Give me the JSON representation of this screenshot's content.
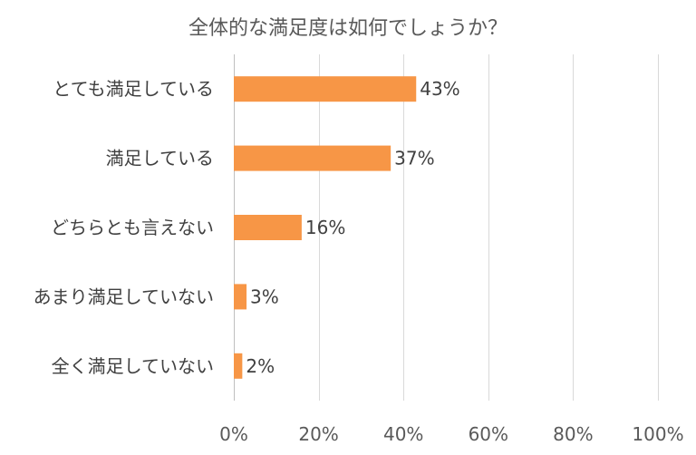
{
  "chart_data": {
    "type": "bar",
    "orientation": "horizontal",
    "title": "全体的な満足度は如何でしょうか？",
    "categories": [
      "とても満足している",
      "満足している",
      "どちらとも言えない",
      "あまり満足していない",
      "全く満足していない"
    ],
    "values": [
      43,
      37,
      16,
      3,
      2
    ],
    "data_labels": [
      "43%",
      "37%",
      "16%",
      "3%",
      "2%"
    ],
    "xlim": [
      0,
      100
    ],
    "x_ticks": [
      0,
      20,
      40,
      60,
      80,
      100
    ],
    "x_tick_labels": [
      "0%",
      "20%",
      "40%",
      "60%",
      "80%",
      "100%"
    ],
    "grid": true,
    "bar_color": "#F79646"
  }
}
